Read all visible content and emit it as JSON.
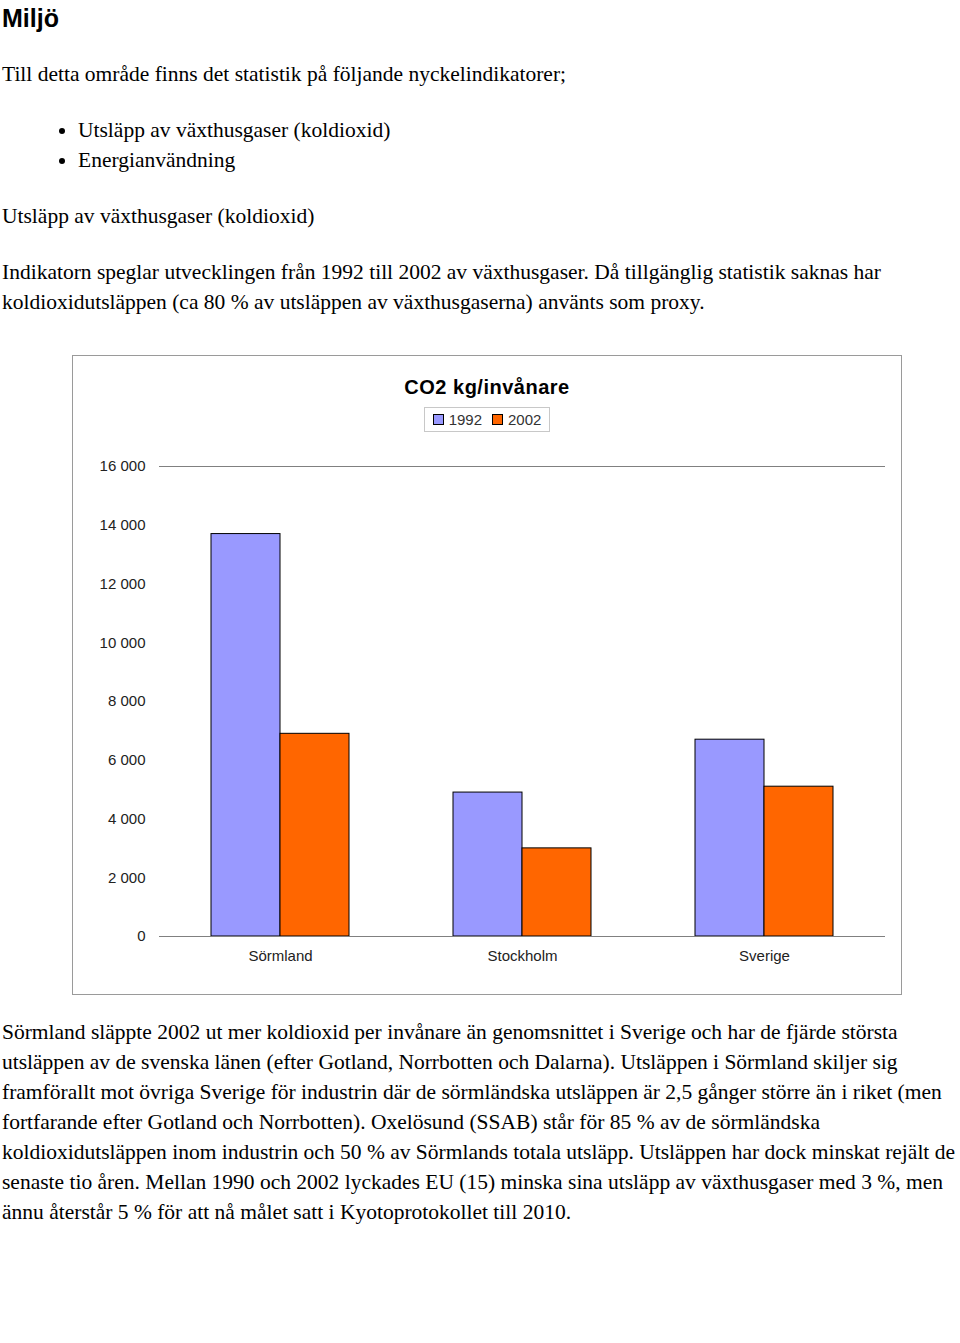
{
  "heading": "Miljö",
  "intro": "Till detta område finns det statistik på följande nyckelindikatorer;",
  "bullets": [
    "Utsläpp av växthusgaser (koldioxid)",
    "Energianvändning"
  ],
  "section_title": "Utsläpp av växthusgaser (koldioxid)",
  "section_text": "Indikatorn speglar utvecklingen från 1992 till 2002 av växthusgaser. Då tillgänglig statistik saknas har koldioxidutsläppen (ca 80 % av utsläppen av växthusgaserna) använts som proxy.",
  "chart_data": {
    "type": "bar",
    "title": "CO2 kg/invånare",
    "categories": [
      "Sörmland",
      "Stockholm",
      "Sverige"
    ],
    "series": [
      {
        "name": "1992",
        "color": "#9999ff",
        "values": [
          13700,
          4900,
          6700
        ]
      },
      {
        "name": "2002",
        "color": "#ff6600",
        "values": [
          6900,
          3000,
          5100
        ]
      }
    ],
    "ylim": [
      0,
      16000
    ],
    "yticks": [
      0,
      {
        "value": 2000,
        "label": "2 000"
      },
      {
        "value": 4000,
        "label": "4 000"
      },
      {
        "value": 6000,
        "label": "6 000"
      },
      {
        "value": 8000,
        "label": "8 000"
      },
      {
        "value": 10000,
        "label": "10 000"
      },
      {
        "value": 12000,
        "label": "12 000"
      },
      {
        "value": 14000,
        "label": "14 000"
      },
      {
        "value": 16000,
        "label": "16 000"
      }
    ],
    "legend": "top",
    "grid": false
  },
  "conclusion": "Sörmland släppte 2002 ut mer koldioxid per invånare än genomsnittet i Sverige och har de fjärde största utsläppen av de svenska länen (efter Gotland, Norrbotten och Dalarna). Utsläppen i Sörmland skiljer sig framförallt mot övriga Sverige för industrin där de sörmländska utsläppen är 2,5 gånger större än i riket (men fortfarande efter Gotland och Norrbotten). Oxelösund (SSAB) står för 85 % av de sörmländska koldioxidutsläppen inom industrin och 50 % av Sörmlands totala utsläpp. Utsläppen har dock minskat rejält de senaste tio åren. Mellan 1990 och 2002 lyckades EU (15) minska sina utsläpp av växthusgaser med 3 %, men ännu återstår 5 % för att nå målet satt i Kyotoprotokollet till 2010."
}
